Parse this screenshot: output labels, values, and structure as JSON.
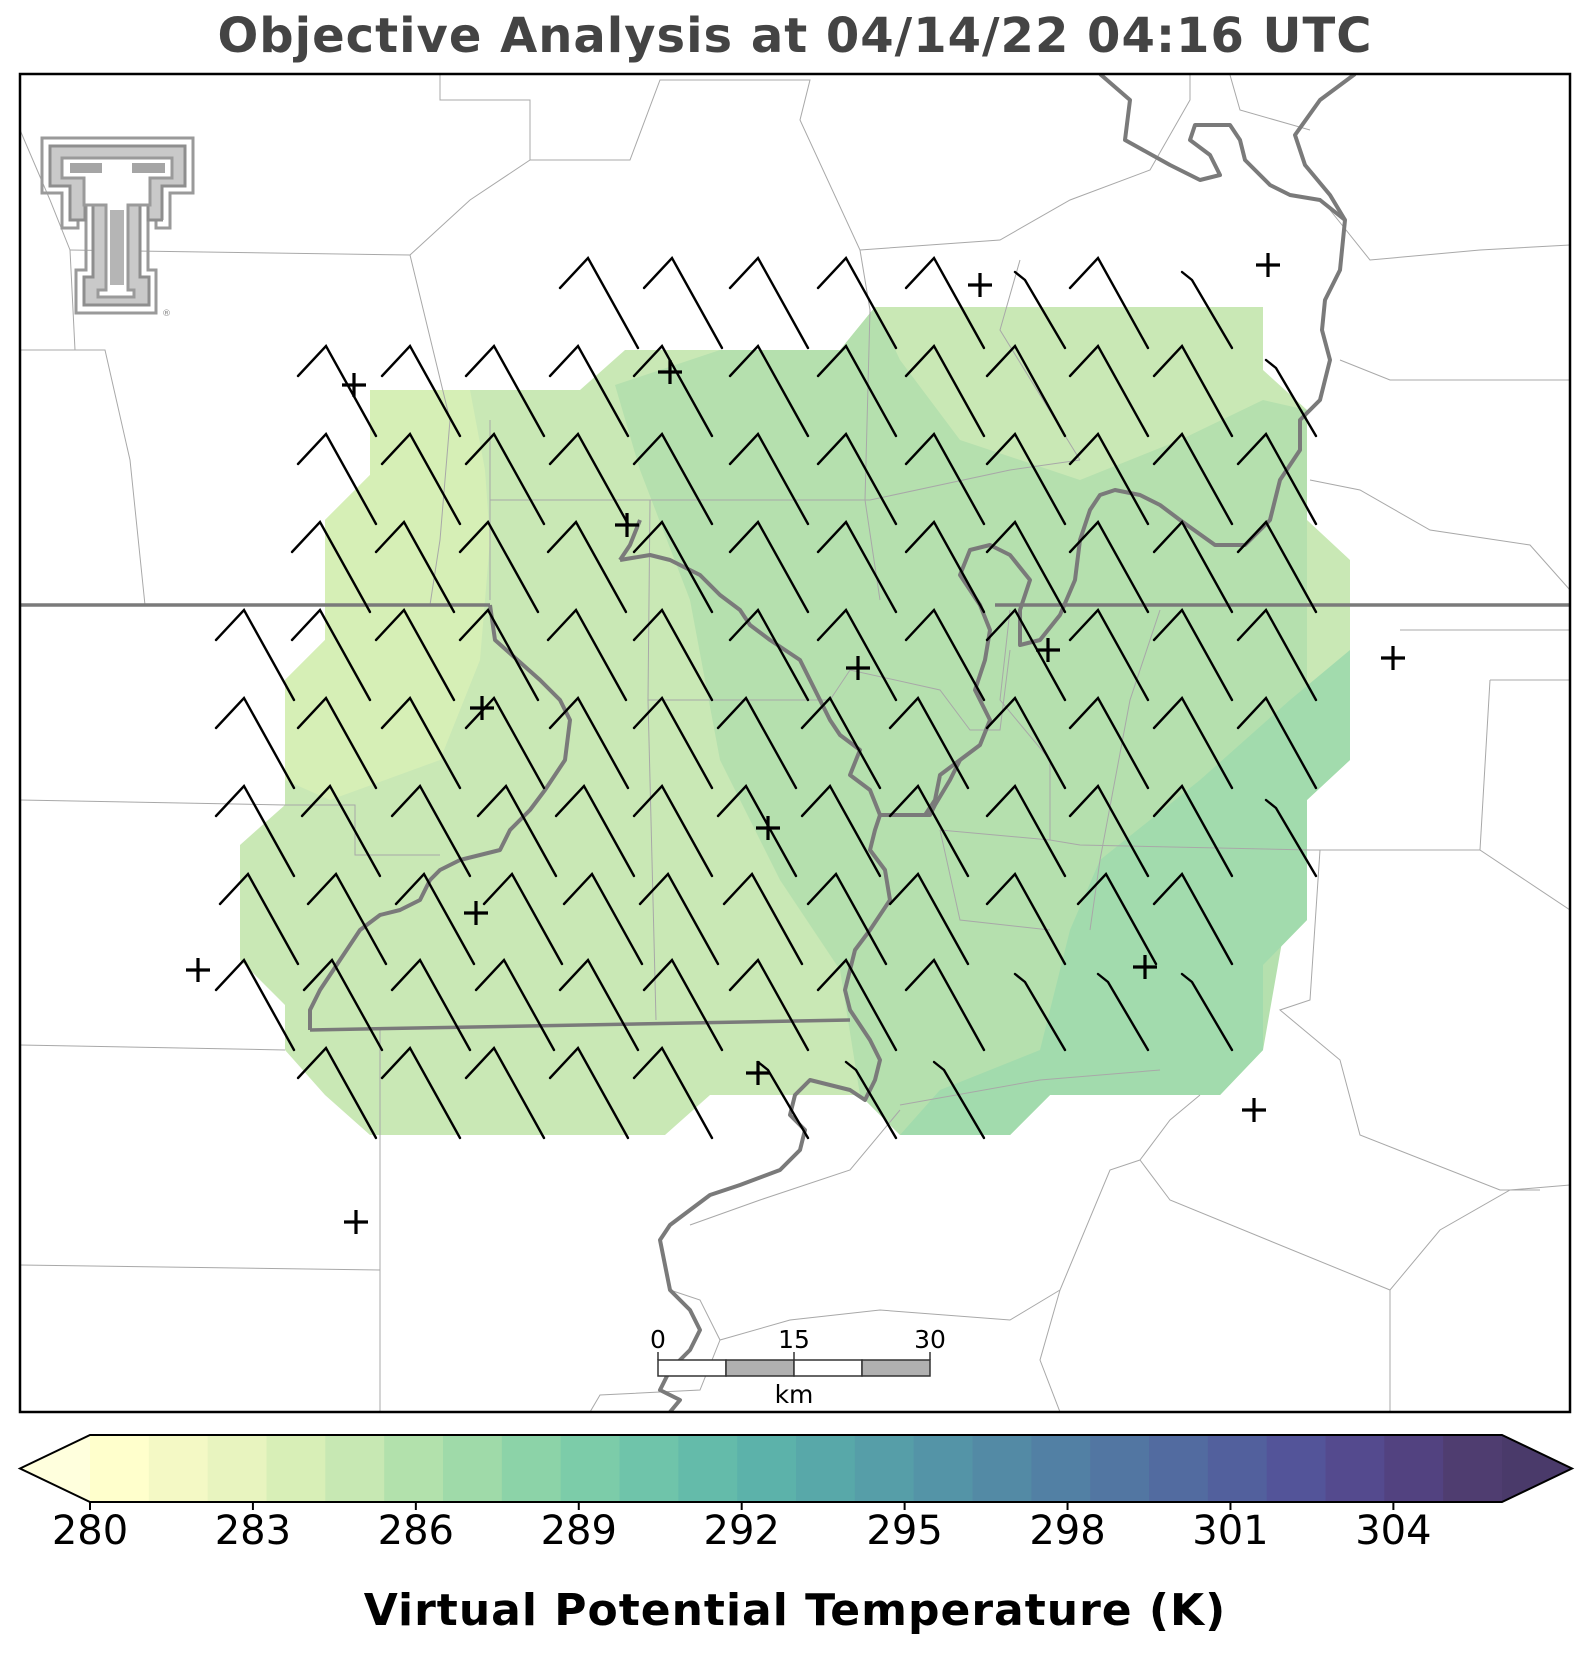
{
  "map": {
    "title": "Objective Analysis at 04/14/22 04:16 UTC",
    "logo": {
      "name": "Texas Tech Double T",
      "registered_mark": "®"
    },
    "scale_bar": {
      "ticks": [
        "0",
        "15",
        "30"
      ],
      "unit": "km"
    },
    "field": "Virtual Potential Temperature (K)",
    "field_colors": [
      "#d7efb3",
      "#c9e8b5",
      "#b5e0ae",
      "#a2dbad"
    ],
    "wind_barbs": "present on analysis grid, winds from northwest",
    "station_markers": "plus-sign markers at observation sites"
  },
  "colorbar": {
    "title": "Virtual Potential Temperature (K)",
    "min": 280,
    "max": 306,
    "extend": "both",
    "tick_labels": [
      "280",
      "283",
      "286",
      "289",
      "292",
      "295",
      "298",
      "301",
      "304"
    ],
    "colors": [
      "#ffffcc",
      "#f4f9c5",
      "#e8f4bf",
      "#d8efb7",
      "#c7e8b3",
      "#b2e1ac",
      "#9fdaa9",
      "#8cd3a8",
      "#7ccca9",
      "#6fc4aa",
      "#64bbaa",
      "#5cb2aa",
      "#58a8a9",
      "#569ea8",
      "#5494a7",
      "#538aa5",
      "#5280a4",
      "#5276a2",
      "#526ba0",
      "#52609d",
      "#535499",
      "#544a8e",
      "#524280",
      "#4f3d70"
    ],
    "extend_low_color": "#ffffdd",
    "extend_high_color": "#4a3a6a"
  }
}
